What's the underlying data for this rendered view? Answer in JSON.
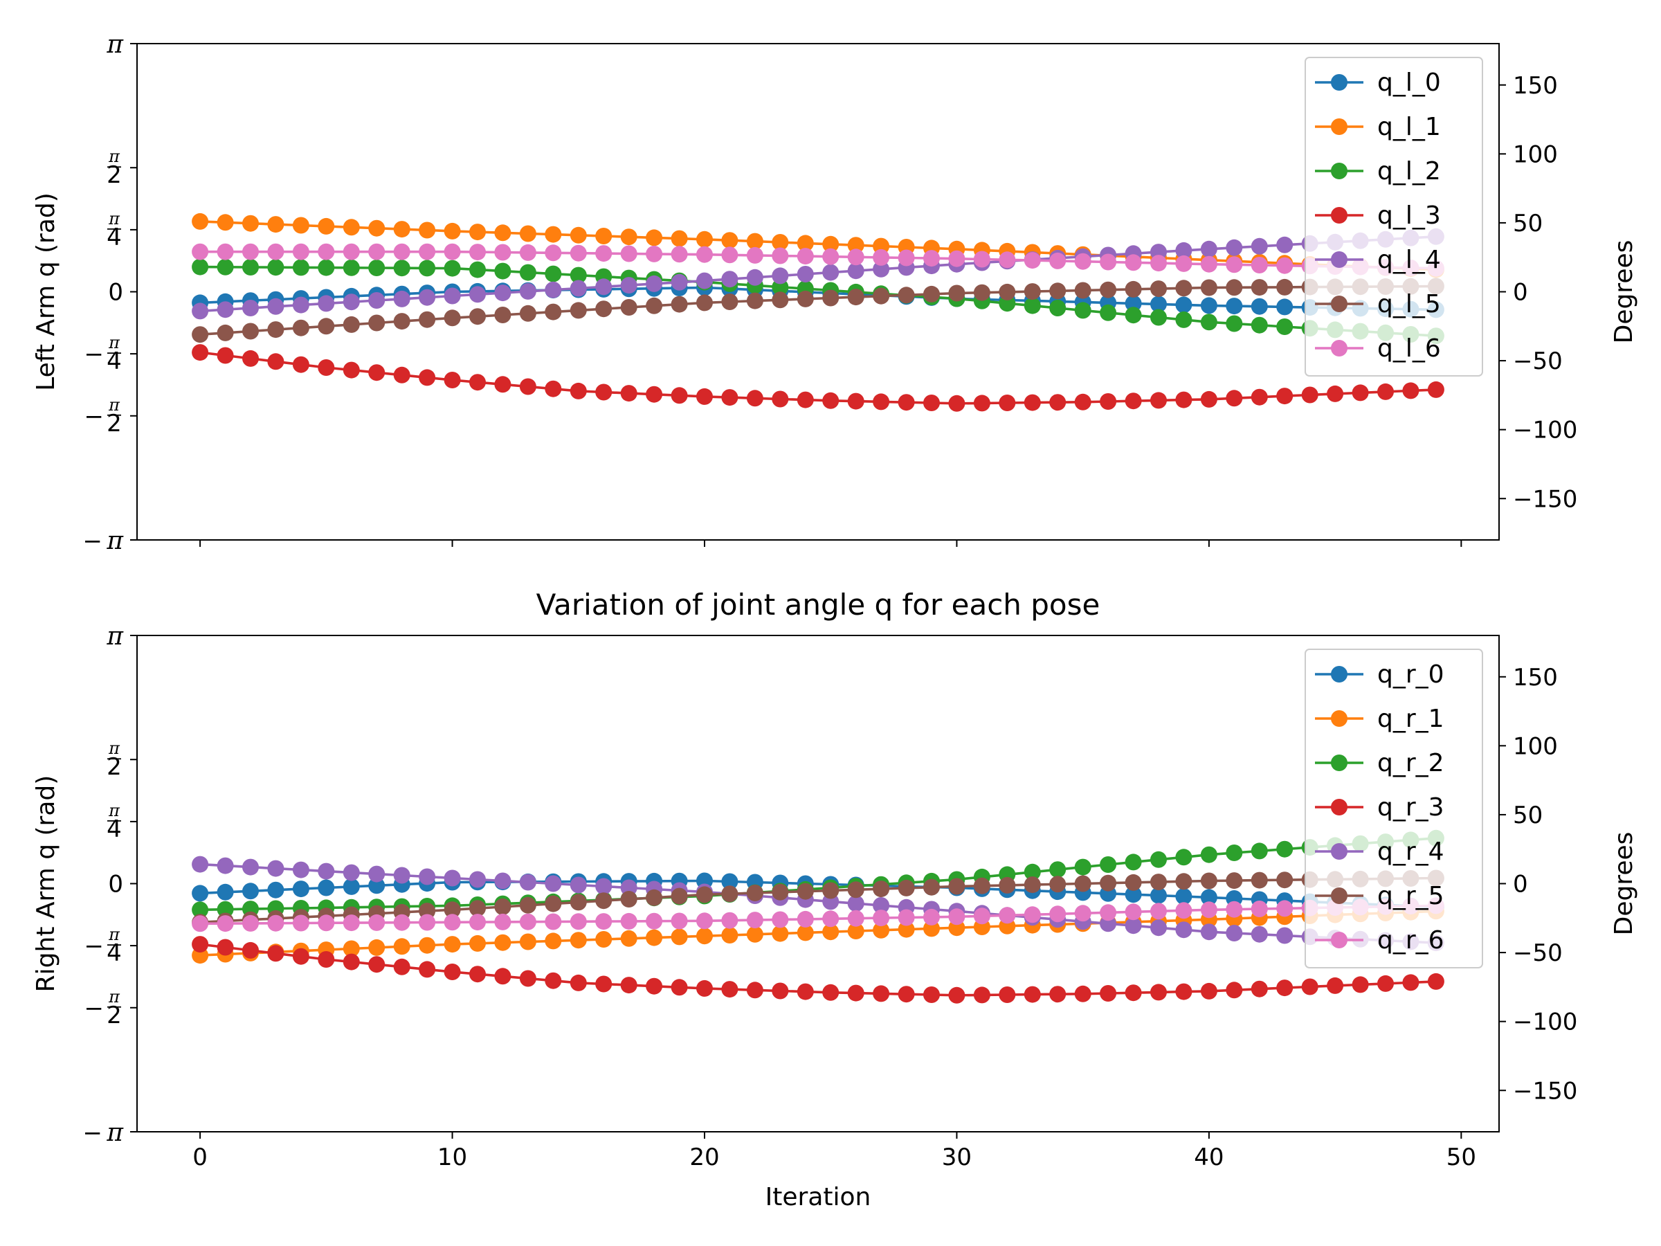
{
  "chart_data": [
    {
      "type": "line",
      "title": "",
      "xlabel": "",
      "ylabel": "Left Arm q (rad)",
      "ylabel_right": "Degrees",
      "xlim": [
        -2.5,
        51.5
      ],
      "ylim": [
        -3.14159,
        3.14159
      ],
      "ylim_right": [
        -180,
        180
      ],
      "x_ticks": [
        0,
        10,
        20,
        30,
        40,
        50
      ],
      "x_tick_labels_visible": false,
      "y_ticks_right": [
        -150,
        -100,
        -50,
        0,
        50,
        100,
        150
      ],
      "y_tick_labels_right": [
        "−150",
        "−100",
        "−50",
        "0",
        "50",
        "100",
        "150"
      ],
      "grid": false,
      "legend_position": "top-right",
      "x": {
        "start": 0,
        "end": 49,
        "count": 50
      },
      "series": [
        {
          "name": "q_l_0",
          "color": "#1f77b4",
          "anchors": [
            [
              0,
              -8
            ],
            [
              10,
              0
            ],
            [
              20,
              3
            ],
            [
              30,
              -5
            ],
            [
              40,
              -10
            ],
            [
              49,
              -13
            ]
          ]
        },
        {
          "name": "q_l_1",
          "color": "#ff7f0e",
          "anchors": [
            [
              0,
              51
            ],
            [
              10,
              44
            ],
            [
              20,
              38
            ],
            [
              30,
              31
            ],
            [
              40,
              23
            ],
            [
              49,
              16
            ]
          ]
        },
        {
          "name": "q_l_2",
          "color": "#2ca02c",
          "anchors": [
            [
              0,
              18
            ],
            [
              10,
              17
            ],
            [
              20,
              7
            ],
            [
              30,
              -5
            ],
            [
              40,
              -22
            ],
            [
              49,
              -32
            ]
          ]
        },
        {
          "name": "q_l_3",
          "color": "#d62728",
          "anchors": [
            [
              0,
              -44
            ],
            [
              5,
              -55
            ],
            [
              10,
              -64
            ],
            [
              15,
              -72
            ],
            [
              20,
              -76
            ],
            [
              25,
              -79
            ],
            [
              30,
              -81
            ],
            [
              35,
              -80
            ],
            [
              40,
              -78
            ],
            [
              45,
              -74
            ],
            [
              49,
              -71
            ]
          ]
        },
        {
          "name": "q_l_4",
          "color": "#9467bd",
          "anchors": [
            [
              0,
              -14
            ],
            [
              10,
              -3
            ],
            [
              20,
              8
            ],
            [
              30,
              20
            ],
            [
              40,
              31
            ],
            [
              49,
              40
            ]
          ]
        },
        {
          "name": "q_l_5",
          "color": "#8c564b",
          "anchors": [
            [
              0,
              -31
            ],
            [
              10,
              -19
            ],
            [
              20,
              -8
            ],
            [
              30,
              -1
            ],
            [
              40,
              3
            ],
            [
              49,
              4
            ]
          ]
        },
        {
          "name": "q_l_6",
          "color": "#e377c2",
          "anchors": [
            [
              0,
              29
            ],
            [
              10,
              29
            ],
            [
              20,
              27
            ],
            [
              30,
              24
            ],
            [
              40,
              20
            ],
            [
              49,
              17
            ]
          ]
        }
      ]
    },
    {
      "type": "line",
      "title": "Variation of joint angle q for each pose",
      "xlabel": "Iteration",
      "ylabel": "Right Arm q (rad)",
      "ylabel_right": "Degrees",
      "xlim": [
        -2.5,
        51.5
      ],
      "ylim": [
        -3.14159,
        3.14159
      ],
      "ylim_right": [
        -180,
        180
      ],
      "x_ticks": [
        0,
        10,
        20,
        30,
        40,
        50
      ],
      "x_tick_labels": [
        "0",
        "10",
        "20",
        "30",
        "40",
        "50"
      ],
      "y_ticks_right": [
        -150,
        -100,
        -50,
        0,
        50,
        100,
        150
      ],
      "y_tick_labels_right": [
        "−150",
        "−100",
        "−50",
        "0",
        "50",
        "100",
        "150"
      ],
      "grid": false,
      "legend_position": "top-right",
      "x": {
        "start": 0,
        "end": 49,
        "count": 50
      },
      "series": [
        {
          "name": "q_r_0",
          "color": "#1f77b4",
          "anchors": [
            [
              0,
              -7
            ],
            [
              10,
              1
            ],
            [
              20,
              2
            ],
            [
              30,
              -3
            ],
            [
              40,
              -10
            ],
            [
              49,
              -17
            ]
          ]
        },
        {
          "name": "q_r_1",
          "color": "#ff7f0e",
          "anchors": [
            [
              0,
              -52
            ],
            [
              10,
              -44
            ],
            [
              20,
              -38
            ],
            [
              30,
              -32
            ],
            [
              40,
              -26
            ],
            [
              49,
              -20
            ]
          ]
        },
        {
          "name": "q_r_2",
          "color": "#2ca02c",
          "anchors": [
            [
              0,
              -19
            ],
            [
              10,
              -16
            ],
            [
              20,
              -9
            ],
            [
              30,
              3
            ],
            [
              40,
              21
            ],
            [
              49,
              33
            ]
          ]
        },
        {
          "name": "q_r_3",
          "color": "#d62728",
          "anchors": [
            [
              0,
              -44
            ],
            [
              5,
              -55
            ],
            [
              10,
              -64
            ],
            [
              15,
              -72
            ],
            [
              20,
              -76
            ],
            [
              25,
              -79
            ],
            [
              30,
              -81
            ],
            [
              35,
              -80
            ],
            [
              40,
              -78
            ],
            [
              45,
              -74
            ],
            [
              49,
              -71
            ]
          ]
        },
        {
          "name": "q_r_4",
          "color": "#9467bd",
          "anchors": [
            [
              0,
              14
            ],
            [
              10,
              4
            ],
            [
              20,
              -6
            ],
            [
              30,
              -20
            ],
            [
              40,
              -35
            ],
            [
              49,
              -43
            ]
          ]
        },
        {
          "name": "q_r_5",
          "color": "#8c564b",
          "anchors": [
            [
              0,
              -28
            ],
            [
              10,
              -19
            ],
            [
              20,
              -8
            ],
            [
              30,
              -2
            ],
            [
              40,
              2
            ],
            [
              49,
              4
            ]
          ]
        },
        {
          "name": "q_r_6",
          "color": "#e377c2",
          "anchors": [
            [
              0,
              -29
            ],
            [
              10,
              -28
            ],
            [
              20,
              -27
            ],
            [
              30,
              -24
            ],
            [
              40,
              -19
            ],
            [
              49,
              -16
            ]
          ]
        }
      ]
    }
  ]
}
